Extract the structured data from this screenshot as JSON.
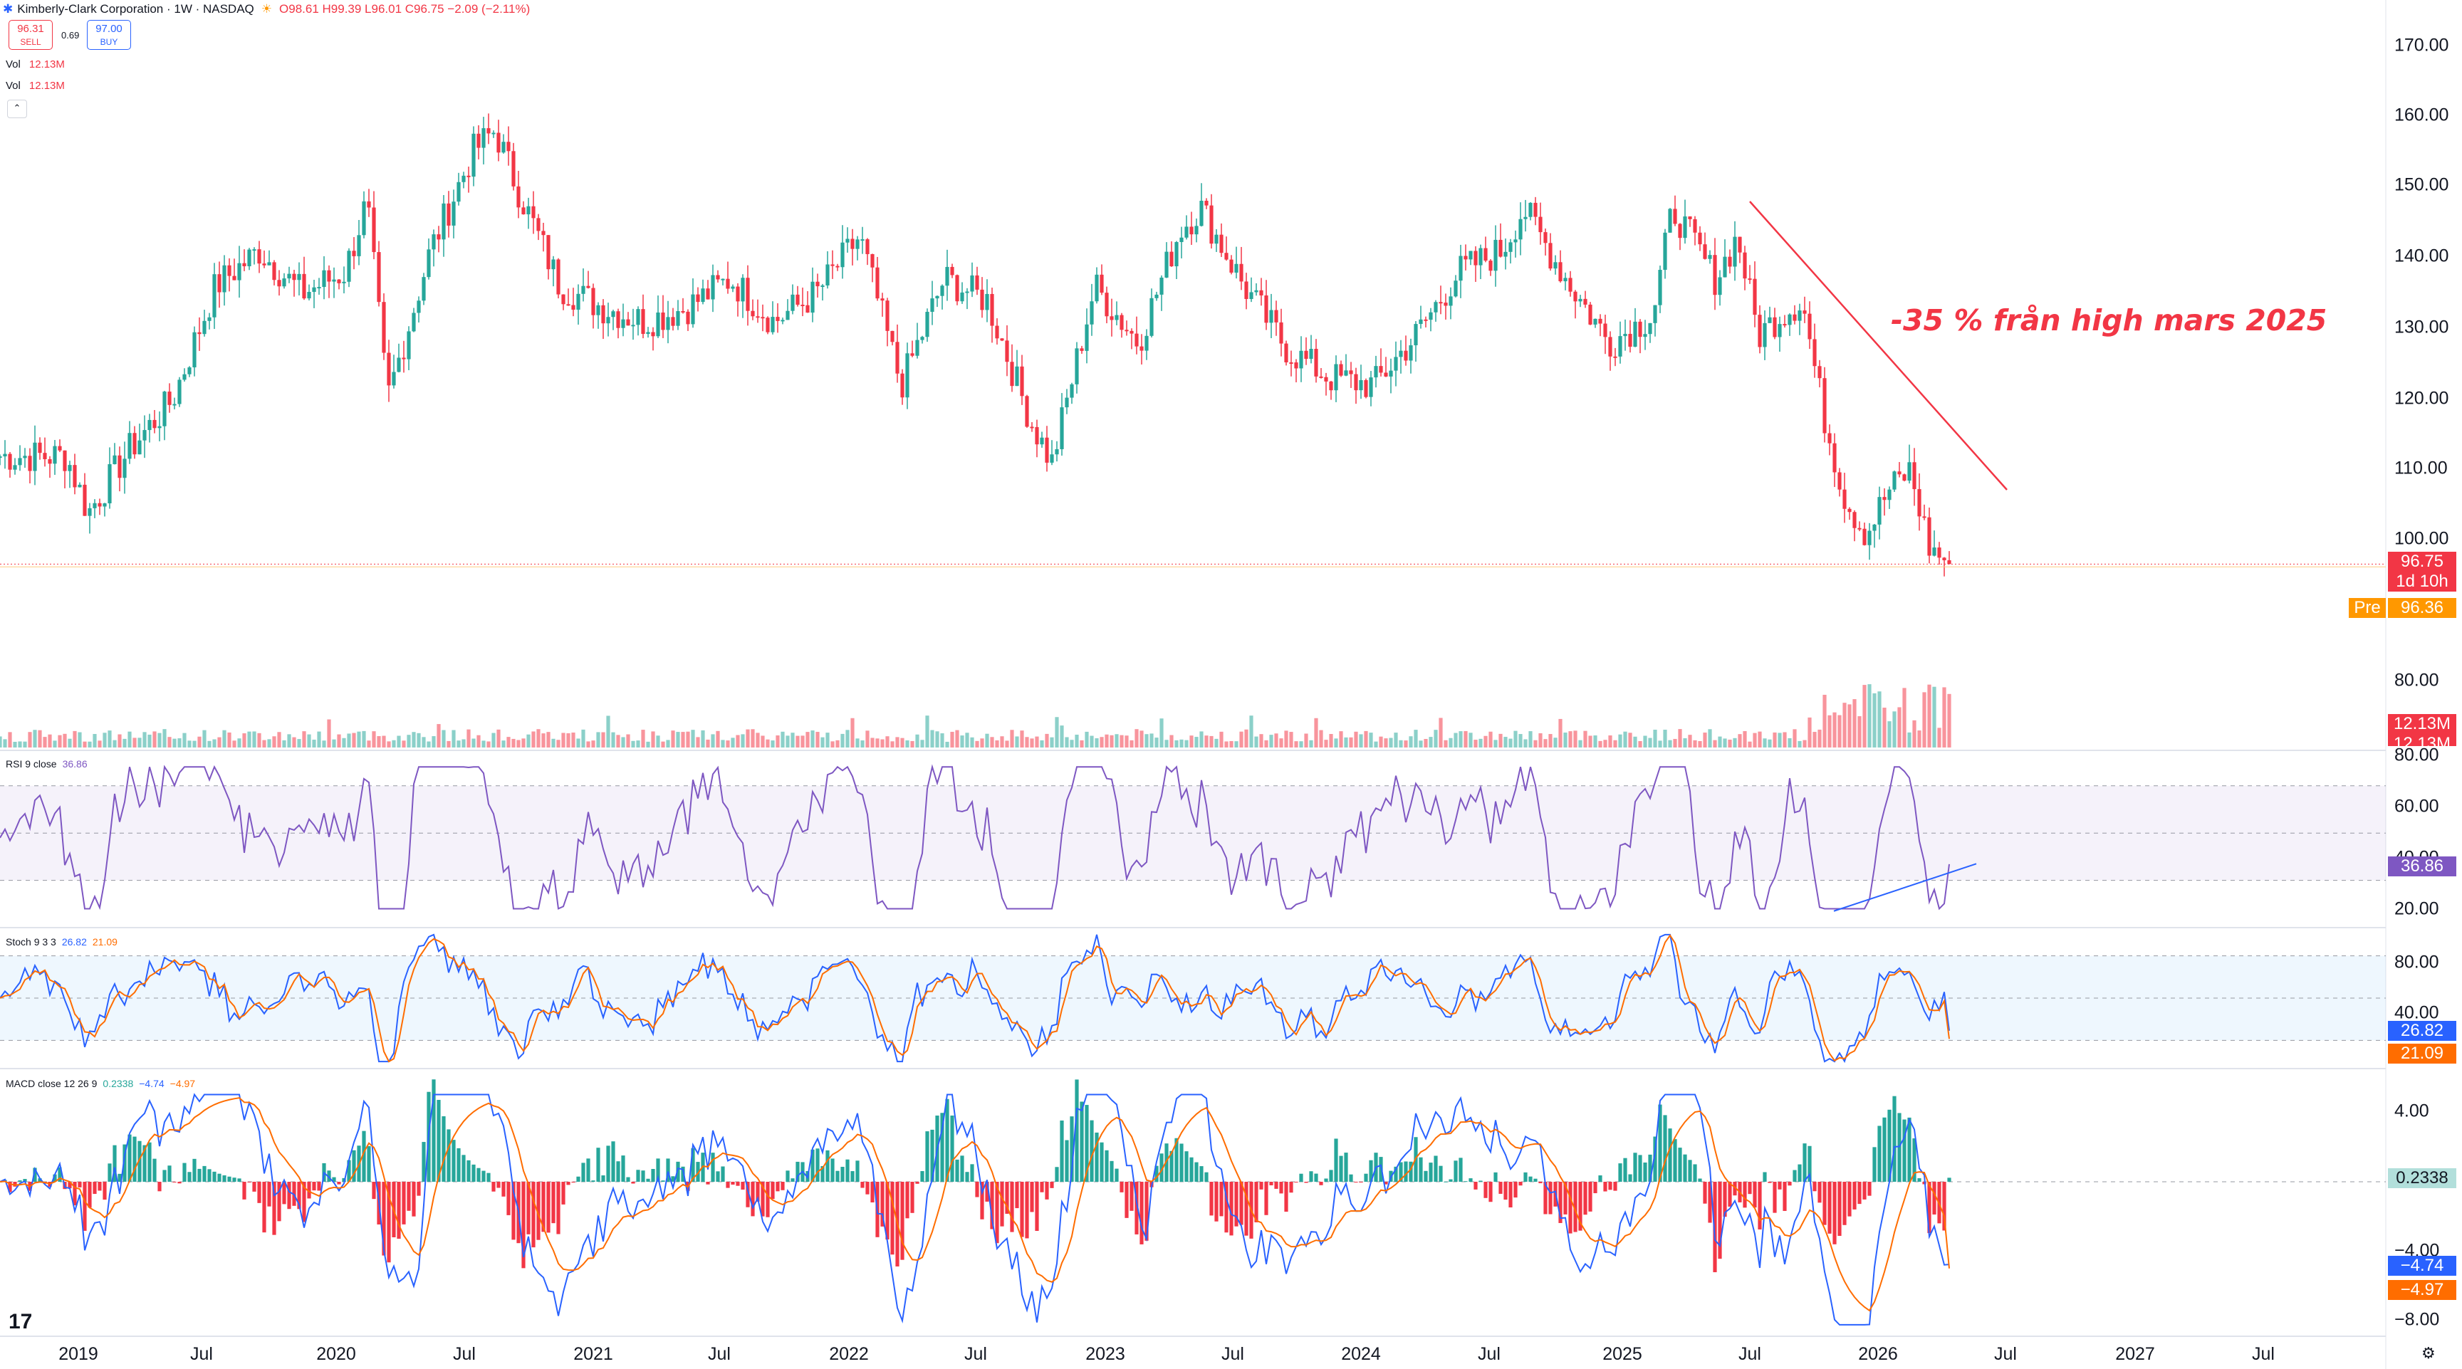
{
  "header": {
    "symbol_line": "Kimberly-Clark Corporation · 1W · NASDAQ",
    "ohlc": "O98.61 H99.39 L96.01 C96.75 −2.09 (−2.11%)",
    "sell_price": "96.31",
    "sell_label": "SELL",
    "spread": "0.69",
    "buy_price": "97.00",
    "buy_label": "BUY",
    "vol_label": "Vol",
    "vol_value": "12.13M",
    "vol_label2": "Vol",
    "vol_value2": "12.13M",
    "collapse_glyph": "⌃"
  },
  "indicators": {
    "rsi_label": "RSI 9 close",
    "rsi_value": "36.86",
    "stoch_label": "Stoch 9 3 3",
    "stoch_k": "26.82",
    "stoch_d": "21.09",
    "macd_label": "MACD close 12 26 9",
    "macd_hist": "0.2338",
    "macd_line": "−4.74",
    "macd_signal": "−4.97"
  },
  "price_axis": [
    "170.00",
    "160.00",
    "150.00",
    "140.00",
    "130.00",
    "120.00",
    "110.00",
    "100.00",
    "80.00"
  ],
  "rsi_axis": [
    "80.00",
    "60.00",
    "40.00",
    "20.00"
  ],
  "stoch_axis": [
    "80.00",
    "40.00"
  ],
  "macd_axis": [
    "4.00",
    "−4.00",
    "−8.00"
  ],
  "price_labels": {
    "last": "96.75",
    "countdown": "1d 10h",
    "pre_tag": "Pre",
    "pre_price": "96.36",
    "vol_a": "12.13M",
    "vol_b": "12.13M"
  },
  "time_axis": [
    "2019",
    "Jul",
    "2020",
    "Jul",
    "2021",
    "Jul",
    "2022",
    "Jul",
    "2023",
    "Jul",
    "2024",
    "Jul",
    "2025",
    "Jul",
    "2026",
    "Jul",
    "2027",
    "Jul"
  ],
  "annotation": "-35 % från high mars 2025",
  "logo": "17",
  "settings_icon": "⚙",
  "colors": {
    "up": "#26a69a",
    "down": "#f23645",
    "rsi": "#7e57c2",
    "k": "#2962ff",
    "d": "#ff6d00",
    "pre": "#ff9800"
  },
  "chart_data": {
    "type": "candlestick",
    "title": "Kimberly-Clark Corporation · 1W · NASDAQ",
    "ylim": [
      75,
      175
    ],
    "anchors": [
      [
        "2018-12",
        112
      ],
      [
        "2019-01",
        104
      ],
      [
        "2019-03",
        113
      ],
      [
        "2019-05",
        120
      ],
      [
        "2019-07",
        136
      ],
      [
        "2019-09",
        141
      ],
      [
        "2019-11",
        135
      ],
      [
        "2020-01",
        138
      ],
      [
        "2020-02",
        148
      ],
      [
        "2020-03",
        120
      ],
      [
        "2020-05",
        141
      ],
      [
        "2020-07",
        155
      ],
      [
        "2020-08",
        158
      ],
      [
        "2020-09",
        150
      ],
      [
        "2020-11",
        136
      ],
      [
        "2021-01",
        133
      ],
      [
        "2021-03",
        131
      ],
      [
        "2021-05",
        133
      ],
      [
        "2021-07",
        137
      ],
      [
        "2021-09",
        131
      ],
      [
        "2021-11",
        135
      ],
      [
        "2022-01",
        143
      ],
      [
        "2022-03",
        122
      ],
      [
        "2022-05",
        137
      ],
      [
        "2022-07",
        134
      ],
      [
        "2022-09",
        117
      ],
      [
        "2022-10",
        111
      ],
      [
        "2022-12",
        136
      ],
      [
        "2023-02",
        128
      ],
      [
        "2023-04",
        144
      ],
      [
        "2023-05",
        147
      ],
      [
        "2023-07",
        136
      ],
      [
        "2023-09",
        127
      ],
      [
        "2023-11",
        123
      ],
      [
        "2024-01",
        122
      ],
      [
        "2024-03",
        129
      ],
      [
        "2024-05",
        138
      ],
      [
        "2024-07",
        141
      ],
      [
        "2024-08",
        147
      ],
      [
        "2024-10",
        137
      ],
      [
        "2024-12",
        128
      ],
      [
        "2025-02",
        132
      ],
      [
        "2025-03",
        147
      ],
      [
        "2025-05",
        137
      ],
      [
        "2025-06",
        143
      ],
      [
        "2025-07",
        129
      ],
      [
        "2025-08",
        132
      ],
      [
        "2025-09",
        134
      ],
      [
        "2025-10",
        118
      ],
      [
        "2025-11",
        106
      ],
      [
        "2025-12",
        101
      ],
      [
        "2026-01",
        107
      ],
      [
        "2026-02",
        110
      ],
      [
        "2026-03",
        99
      ],
      [
        "2026-04",
        96.75
      ]
    ],
    "last_close": 96.75,
    "pre_market": 96.36,
    "last_volume": "12.13M",
    "rsi": {
      "period": 9,
      "ylim": [
        10,
        85
      ],
      "last": 36.86
    },
    "stochastic": {
      "params": "9 3 3",
      "ylim": [
        0,
        100
      ],
      "k_last": 26.82,
      "d_last": 21.09
    },
    "macd": {
      "params": "12 26 9",
      "ylim": [
        -9,
        6
      ],
      "hist_last": 0.2338,
      "macd_last": -4.74,
      "signal_last": -4.97
    }
  }
}
